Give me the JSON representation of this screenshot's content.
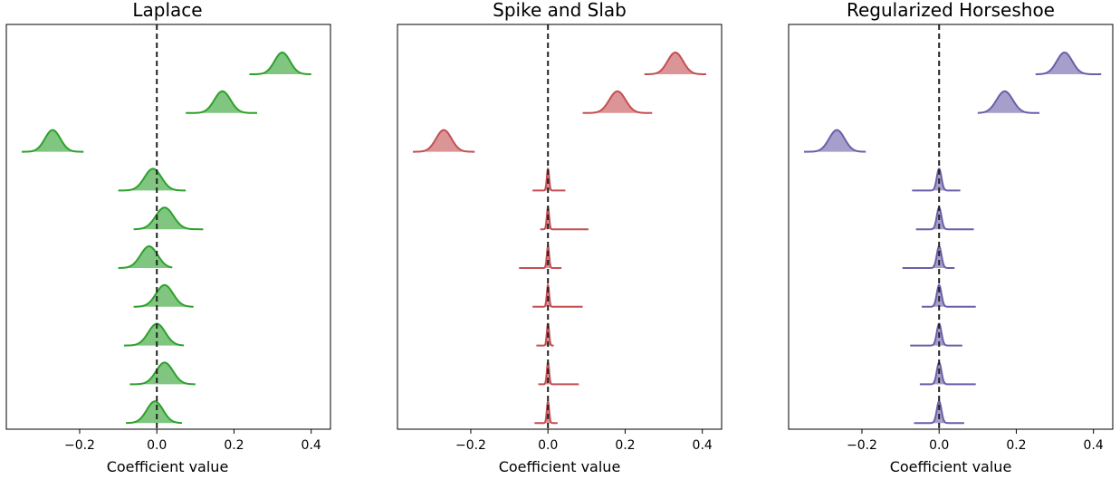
{
  "chart_data": [
    {
      "type": "ridgeline",
      "title": "Laplace",
      "xlabel": "Coefficient value",
      "ylabel": "",
      "xlim": [
        -0.39,
        0.45
      ],
      "xticks": [
        -0.2,
        0.0,
        0.2,
        0.4
      ],
      "xtick_labels": [
        "−0.2",
        "0.0",
        "0.2",
        "0.4"
      ],
      "color": "#2ca02c",
      "reference_line_x": 0.0,
      "distributions": [
        {
          "mean": 0.325,
          "sd": 0.02,
          "min": 0.24,
          "max": 0.4
        },
        {
          "mean": 0.17,
          "sd": 0.021,
          "min": 0.075,
          "max": 0.26
        },
        {
          "mean": -0.27,
          "sd": 0.02,
          "min": -0.35,
          "max": -0.19
        },
        {
          "mean": -0.01,
          "sd": 0.022,
          "min": -0.1,
          "max": 0.075
        },
        {
          "mean": 0.02,
          "sd": 0.023,
          "min": -0.06,
          "max": 0.12
        },
        {
          "mean": -0.02,
          "sd": 0.022,
          "min": -0.1,
          "max": 0.04
        },
        {
          "mean": 0.02,
          "sd": 0.022,
          "min": -0.06,
          "max": 0.095
        },
        {
          "mean": 0.0,
          "sd": 0.022,
          "min": -0.085,
          "max": 0.07
        },
        {
          "mean": 0.02,
          "sd": 0.022,
          "min": -0.07,
          "max": 0.1
        },
        {
          "mean": -0.005,
          "sd": 0.021,
          "min": -0.08,
          "max": 0.065
        }
      ]
    },
    {
      "type": "ridgeline",
      "title": "Spike and Slab",
      "xlabel": "Coefficient value",
      "ylabel": "",
      "xlim": [
        -0.39,
        0.45
      ],
      "xticks": [
        -0.2,
        0.0,
        0.2,
        0.4
      ],
      "xtick_labels": [
        "−0.2",
        "0.0",
        "0.2",
        "0.4"
      ],
      "color": "#c44e52",
      "reference_line_x": 0.0,
      "distributions": [
        {
          "mean": 0.33,
          "sd": 0.02,
          "min": 0.25,
          "max": 0.41
        },
        {
          "mean": 0.18,
          "sd": 0.021,
          "min": 0.09,
          "max": 0.27
        },
        {
          "mean": -0.27,
          "sd": 0.02,
          "min": -0.35,
          "max": -0.19
        },
        {
          "mean": 0.0,
          "sd": 0.003,
          "min": -0.04,
          "max": 0.045
        },
        {
          "mean": 0.0,
          "sd": 0.003,
          "min": -0.02,
          "max": 0.105
        },
        {
          "mean": 0.0,
          "sd": 0.003,
          "min": -0.075,
          "max": 0.035
        },
        {
          "mean": 0.0,
          "sd": 0.003,
          "min": -0.04,
          "max": 0.09
        },
        {
          "mean": 0.0,
          "sd": 0.003,
          "min": -0.03,
          "max": 0.015
        },
        {
          "mean": 0.0,
          "sd": 0.003,
          "min": -0.025,
          "max": 0.08
        },
        {
          "mean": 0.0,
          "sd": 0.003,
          "min": -0.035,
          "max": 0.025
        }
      ]
    },
    {
      "type": "ridgeline",
      "title": "Regularized Horseshoe",
      "xlabel": "Coefficient value",
      "ylabel": "",
      "xlim": [
        -0.39,
        0.45
      ],
      "xticks": [
        -0.2,
        0.0,
        0.2,
        0.4
      ],
      "xtick_labels": [
        "−0.2",
        "0.0",
        "0.2",
        "0.4"
      ],
      "color": "#6a5fa8",
      "reference_line_x": 0.0,
      "distributions": [
        {
          "mean": 0.325,
          "sd": 0.02,
          "min": 0.25,
          "max": 0.42
        },
        {
          "mean": 0.17,
          "sd": 0.021,
          "min": 0.1,
          "max": 0.26
        },
        {
          "mean": -0.265,
          "sd": 0.02,
          "min": -0.35,
          "max": -0.19
        },
        {
          "mean": 0.0,
          "sd": 0.006,
          "min": -0.07,
          "max": 0.055
        },
        {
          "mean": 0.0,
          "sd": 0.006,
          "min": -0.06,
          "max": 0.09
        },
        {
          "mean": 0.0,
          "sd": 0.006,
          "min": -0.095,
          "max": 0.04
        },
        {
          "mean": 0.0,
          "sd": 0.006,
          "min": -0.045,
          "max": 0.095
        },
        {
          "mean": 0.0,
          "sd": 0.006,
          "min": -0.075,
          "max": 0.06
        },
        {
          "mean": 0.0,
          "sd": 0.006,
          "min": -0.05,
          "max": 0.095
        },
        {
          "mean": 0.0,
          "sd": 0.006,
          "min": -0.065,
          "max": 0.065
        }
      ]
    }
  ]
}
